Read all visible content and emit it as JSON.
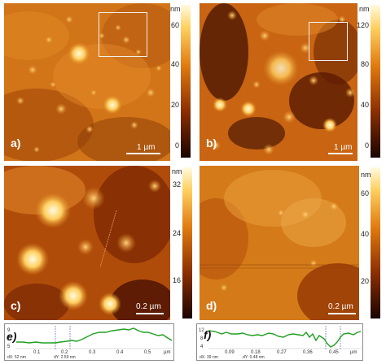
{
  "panels": {
    "a": {
      "label": "a)",
      "scale": "1 µm"
    },
    "b": {
      "label": "b)",
      "scale": "1 µm"
    },
    "c": {
      "label": "c)",
      "scale": "0.2 µm"
    },
    "d": {
      "label": "d)",
      "scale": "0.2 µm"
    }
  },
  "colorbars": {
    "top_left": {
      "unit": "nm",
      "ticks": [
        "60",
        "40",
        "20",
        "0"
      ]
    },
    "top_right": {
      "unit": "nm",
      "ticks": [
        "120",
        "80",
        "40",
        "0"
      ]
    },
    "bottom_left": {
      "unit": "nm",
      "ticks": [
        "32",
        "24",
        "16"
      ]
    },
    "bottom_right": {
      "unit": "nm",
      "ticks": [
        "60",
        "40",
        "20"
      ]
    }
  },
  "profiles": {
    "e": {
      "label": "e)",
      "y_ticks": [
        "9",
        "7",
        "5"
      ],
      "x_ticks": [
        "0.1",
        "0.2",
        "0.3",
        "0.4",
        "0.5"
      ],
      "x_unit": "µm",
      "footer_left": "dX: 52 nm",
      "footer_mid": "dY: 2.59 nm",
      "line_color": "#1fa01f"
    },
    "f": {
      "label": "f)",
      "y_ticks": [
        "12",
        "8",
        "4"
      ],
      "x_ticks": [
        "0.09",
        "0.18",
        "0.27",
        "0.36",
        "0.45"
      ],
      "x_unit": "µm",
      "footer_left": "dX: 39 nm",
      "footer_mid": "dY: 0.48 nm",
      "line_color": "#1fa01f"
    }
  },
  "colors": {
    "afm_dark": "#2a0800",
    "afm_mid": "#c8600a",
    "afm_bright": "#fff4c0"
  }
}
